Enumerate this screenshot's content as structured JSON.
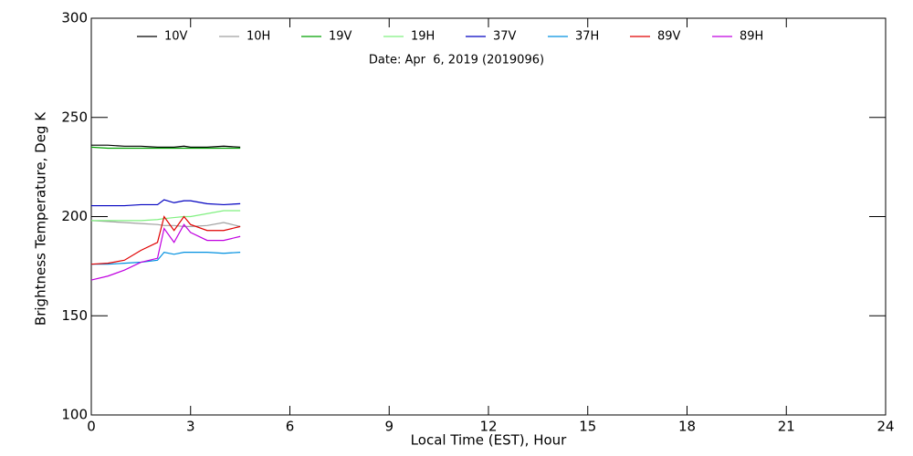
{
  "chart_data": {
    "type": "line",
    "subtitle": "Date: Apr  6, 2019 (2019096)",
    "xlabel": "Local Time (EST), Hour",
    "ylabel": "Brightness Temperature, Deg K",
    "x": [
      0,
      0.5,
      1,
      1.5,
      2,
      2.2,
      2.5,
      2.8,
      3,
      3.5,
      4,
      4.5
    ],
    "series": [
      {
        "name": "10V",
        "color": "#000000",
        "values": [
          236,
          236,
          235.5,
          235.5,
          235,
          235,
          235,
          235.5,
          235,
          235,
          235.5,
          235
        ]
      },
      {
        "name": "10H",
        "color": "#a0a0a0",
        "values": [
          198,
          197.5,
          197,
          196.5,
          196,
          195.5,
          195.5,
          195,
          195,
          195.5,
          197,
          195
        ]
      },
      {
        "name": "19V",
        "color": "#00a000",
        "values": [
          235,
          234.5,
          234.5,
          234.5,
          234.5,
          234.5,
          234.5,
          234.5,
          234.5,
          234.5,
          234.5,
          234.5
        ]
      },
      {
        "name": "19H",
        "color": "#80f080",
        "values": [
          198,
          198,
          198,
          198,
          198.5,
          199,
          199.5,
          200,
          200,
          201.5,
          203,
          203
        ]
      },
      {
        "name": "37V",
        "color": "#0000c0",
        "values": [
          205.5,
          205.5,
          205.5,
          206,
          206,
          208.5,
          207,
          208,
          208,
          206.5,
          206,
          206.5
        ]
      },
      {
        "name": "37H",
        "color": "#0090e0",
        "values": [
          176,
          176,
          176.5,
          177,
          178,
          182,
          181,
          182,
          182,
          182,
          181.5,
          182
        ]
      },
      {
        "name": "89V",
        "color": "#e00000",
        "values": [
          176,
          176.5,
          178,
          183,
          187,
          200,
          193,
          200,
          196,
          193,
          193,
          195
        ]
      },
      {
        "name": "89H",
        "color": "#c000e0",
        "values": [
          168,
          170,
          173,
          177,
          179,
          194,
          187,
          196,
          192,
          188,
          188,
          190
        ]
      }
    ],
    "xlim": [
      0,
      24
    ],
    "xticks": [
      0,
      3,
      6,
      9,
      12,
      15,
      18,
      21,
      24
    ],
    "ylim": [
      100,
      300
    ],
    "yticks": [
      100,
      150,
      200,
      250,
      300
    ]
  }
}
